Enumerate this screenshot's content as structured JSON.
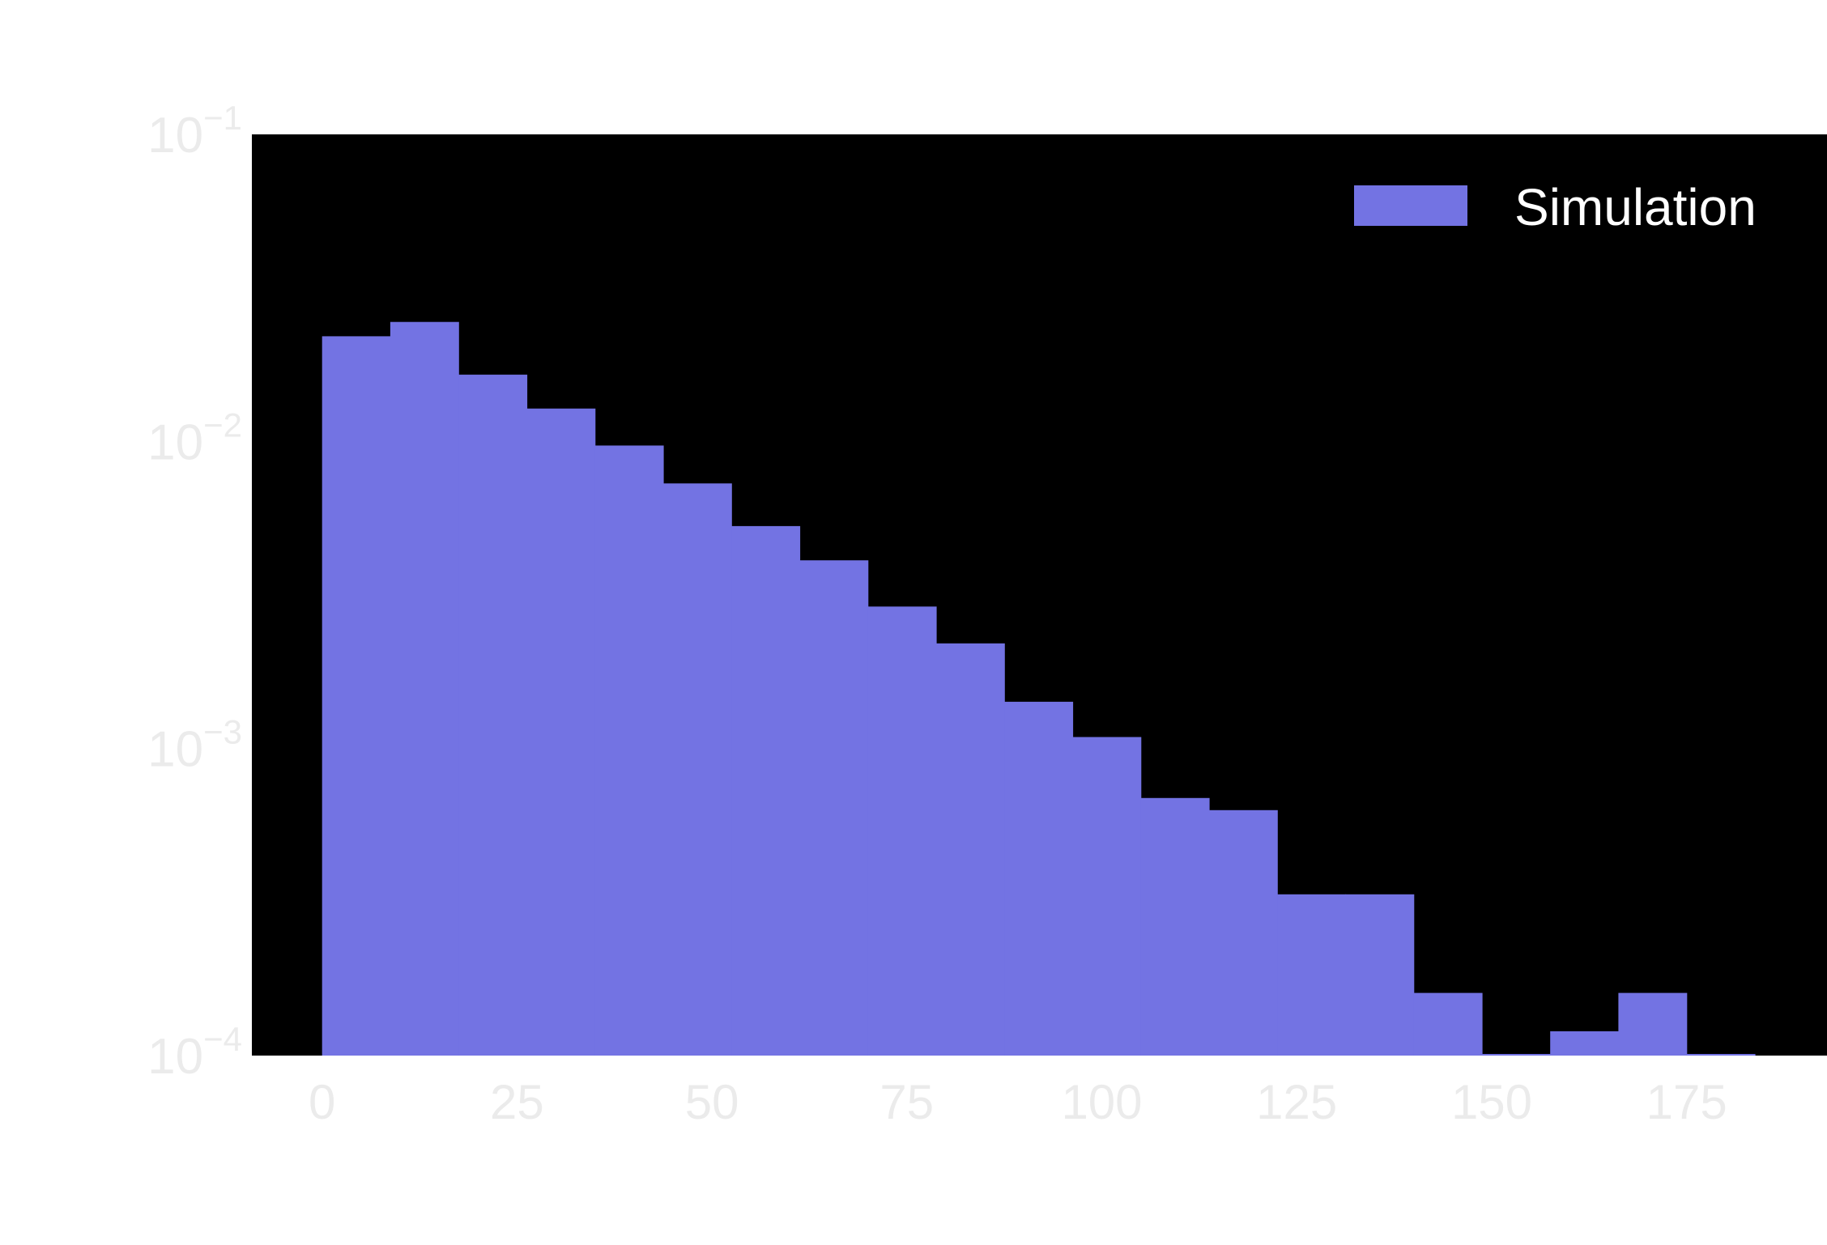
{
  "chart_data": {
    "type": "bar",
    "histogram": true,
    "bin_width": 8.75,
    "bins": [
      {
        "x0": 0.0,
        "x1": 8.75,
        "y": 0.022
      },
      {
        "x0": 8.75,
        "x1": 17.5,
        "y": 0.0245
      },
      {
        "x0": 17.5,
        "x1": 26.25,
        "y": 0.0165
      },
      {
        "x0": 26.25,
        "x1": 35.0,
        "y": 0.0128
      },
      {
        "x0": 35.0,
        "x1": 43.75,
        "y": 0.0097
      },
      {
        "x0": 43.75,
        "x1": 52.5,
        "y": 0.0073
      },
      {
        "x0": 52.5,
        "x1": 61.25,
        "y": 0.0053
      },
      {
        "x0": 61.25,
        "x1": 70.0,
        "y": 0.0041
      },
      {
        "x0": 70.0,
        "x1": 78.75,
        "y": 0.0029
      },
      {
        "x0": 78.75,
        "x1": 87.5,
        "y": 0.0022
      },
      {
        "x0": 87.5,
        "x1": 96.25,
        "y": 0.00142
      },
      {
        "x0": 96.25,
        "x1": 105.0,
        "y": 0.00109
      },
      {
        "x0": 105.0,
        "x1": 113.75,
        "y": 0.00069
      },
      {
        "x0": 113.75,
        "x1": 122.5,
        "y": 0.00063
      },
      {
        "x0": 122.5,
        "x1": 131.25,
        "y": 0.000335
      },
      {
        "x0": 131.25,
        "x1": 140.0,
        "y": 0.000335
      },
      {
        "x0": 140.0,
        "x1": 148.75,
        "y": 0.00016
      },
      {
        "x0": 148.75,
        "x1": 157.5,
        "y": 0.0001
      },
      {
        "x0": 157.5,
        "x1": 166.25,
        "y": 0.00012
      },
      {
        "x0": 166.25,
        "x1": 175.0,
        "y": 0.00016
      },
      {
        "x0": 175.0,
        "x1": 183.75,
        "y": 0.0001
      }
    ],
    "series": [
      {
        "name": "Simulation",
        "color": "#7373e3"
      }
    ],
    "xlim": [
      -9,
      193
    ],
    "ylim": [
      0.0001,
      0.1
    ],
    "yscale": "log",
    "xticks": [
      0,
      25,
      50,
      75,
      100,
      125,
      150,
      175
    ],
    "xtick_labels": [
      "0",
      "25",
      "50",
      "75",
      "100",
      "125",
      "150",
      "175"
    ],
    "yticks": [
      0.1,
      0.01,
      0.001,
      0.0001
    ],
    "ytick_labels": [
      {
        "base": "10",
        "exp": "−1"
      },
      {
        "base": "10",
        "exp": "−2"
      },
      {
        "base": "10",
        "exp": "−3"
      },
      {
        "base": "10",
        "exp": "−4"
      }
    ],
    "legend": {
      "label": "Simulation",
      "placement": "top-right"
    },
    "grid": false,
    "title": "",
    "xlabel": "",
    "ylabel": "",
    "colors": {
      "plot_background": "#000000",
      "page_background": "#ffffff",
      "tick_text": "#ebebeb",
      "legend_text": "#ffffff"
    }
  }
}
